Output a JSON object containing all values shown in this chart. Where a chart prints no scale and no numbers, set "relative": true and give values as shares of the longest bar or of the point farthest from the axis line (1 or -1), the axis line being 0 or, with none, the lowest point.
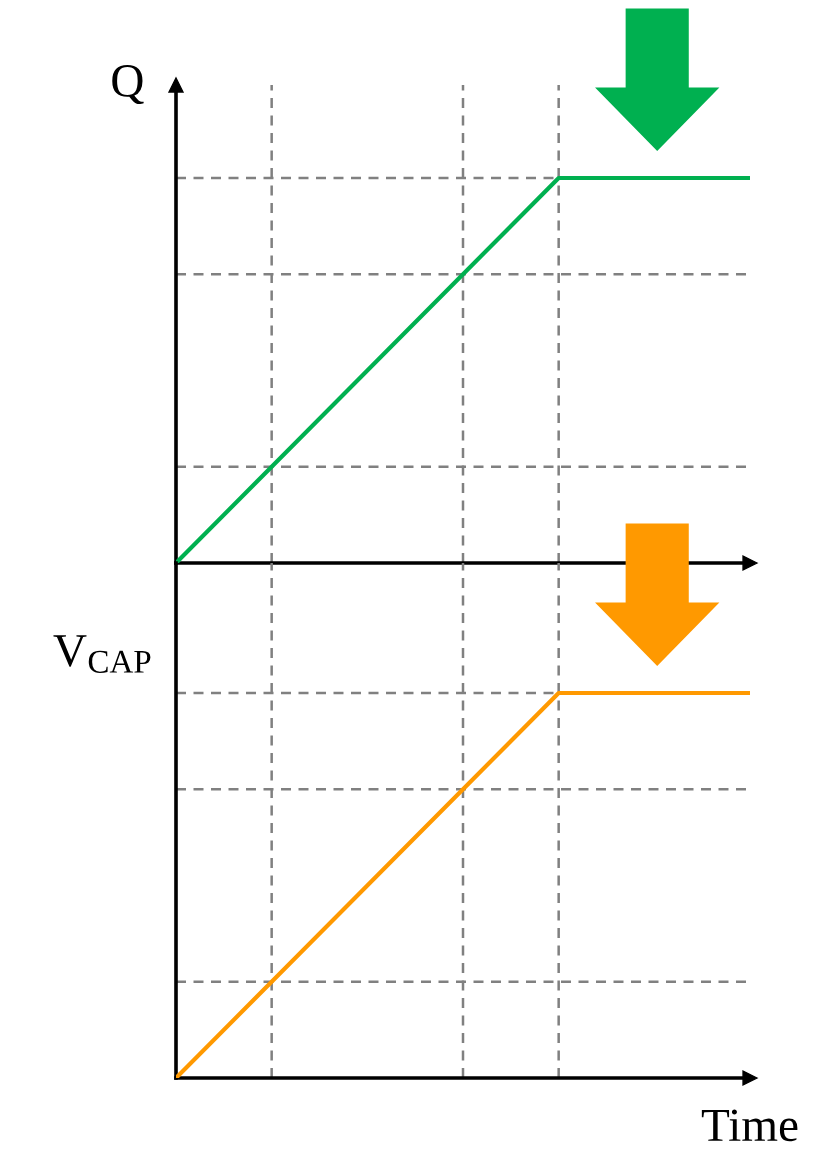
{
  "chart_data": [
    {
      "type": "line",
      "ylabel": "Q",
      "categories": [
        null,
        null,
        null,
        null,
        null,
        null,
        null
      ],
      "relative": true,
      "grid": true,
      "series": [
        {
          "color": "#00b050",
          "values": [
            0,
            0.25,
            0.5,
            0.75,
            1,
            1,
            1
          ]
        }
      ],
      "ref_lines": [
        {
          "axis": "y",
          "value": 0.25,
          "color": "#808080",
          "line_style": "dashed"
        },
        {
          "axis": "y",
          "value": 0.75,
          "color": "#808080",
          "line_style": "dashed"
        }
      ]
    },
    {
      "type": "line",
      "ylabel": "V$_{CAP}$",
      "xlabel": "Time",
      "categories": [
        null,
        null,
        null,
        null,
        null,
        null,
        null
      ],
      "relative": true,
      "grid": true,
      "series": [
        {
          "color": "#ff9900",
          "values": [
            0,
            0.25,
            0.5,
            0.75,
            1,
            1,
            1
          ]
        }
      ],
      "ref_lines": [
        {
          "axis": "y",
          "value": 0.25,
          "color": "#808080",
          "line_style": "dashed"
        },
        {
          "axis": "y",
          "value": 0.75,
          "color": "#808080",
          "line_style": "dashed"
        }
      ]
    }
  ]
}
